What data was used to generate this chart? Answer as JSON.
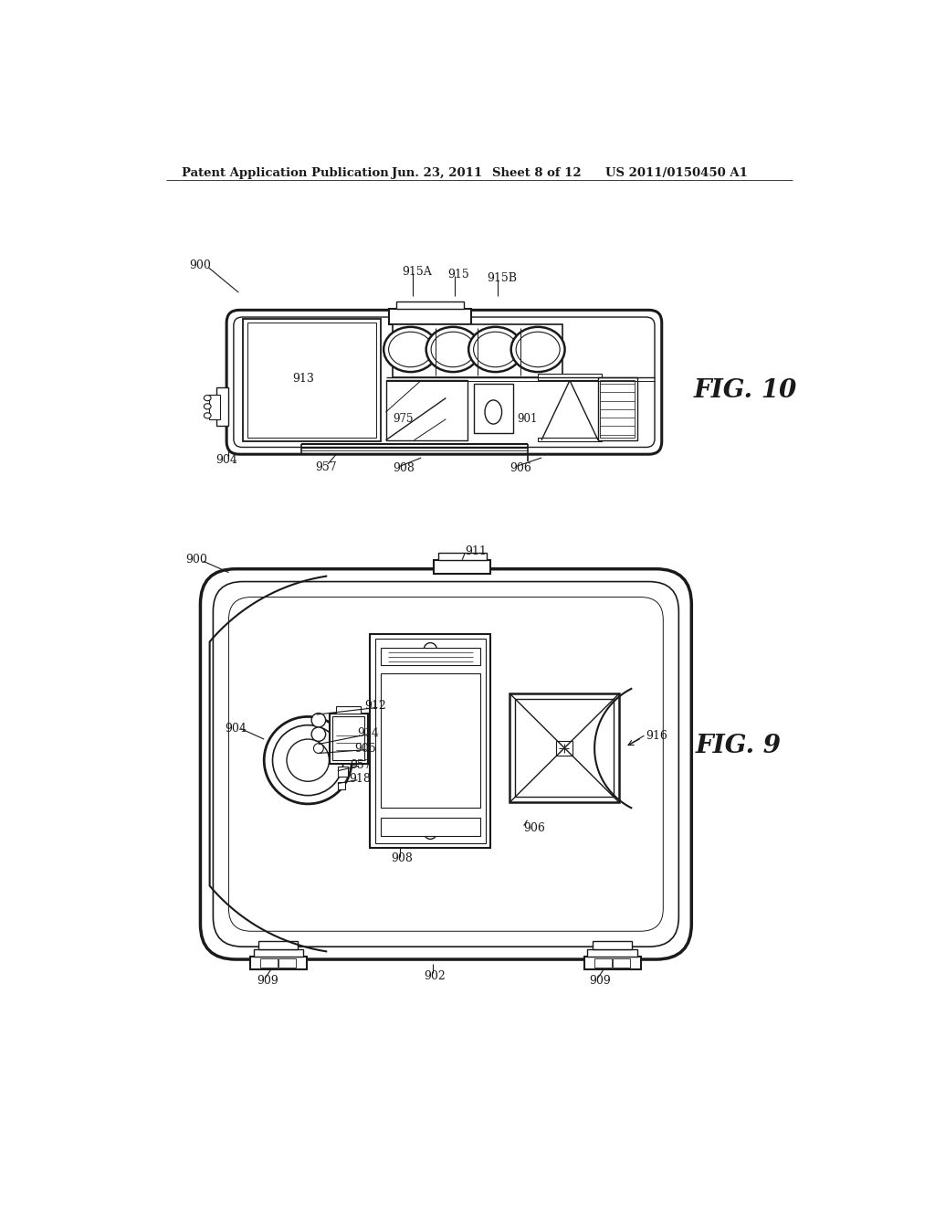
{
  "background_color": "#ffffff",
  "header_text": "Patent Application Publication",
  "header_date": "Jun. 23, 2011",
  "header_sheet": "Sheet 8 of 12",
  "header_patent": "US 2011/0150450 A1",
  "fig10_label": "FIG. 10",
  "fig9_label": "FIG. 9",
  "line_color": "#1a1a1a",
  "line_width": 1.2
}
